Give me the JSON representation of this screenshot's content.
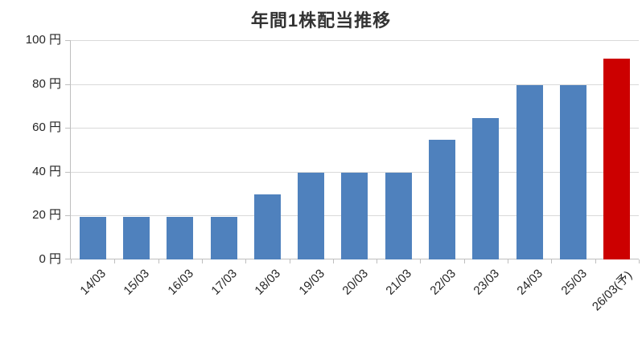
{
  "title": "年間1株配当推移",
  "chart_data": {
    "type": "bar",
    "title": "年間1株配当推移",
    "xlabel": "",
    "ylabel": "",
    "unit": "円",
    "categories": [
      "14/03",
      "15/03",
      "16/03",
      "17/03",
      "18/03",
      "19/03",
      "20/03",
      "21/03",
      "22/03",
      "23/03",
      "24/03",
      "25/03",
      "26/03(予)"
    ],
    "values": [
      19.5,
      19.5,
      19.5,
      19.5,
      29.5,
      39.5,
      39.5,
      39.5,
      54.5,
      64.5,
      79.5,
      79.5,
      91.5
    ],
    "bar_types": [
      "actual",
      "actual",
      "actual",
      "actual",
      "actual",
      "actual",
      "actual",
      "actual",
      "actual",
      "actual",
      "actual",
      "actual",
      "forecast"
    ],
    "colors": {
      "actual": "#4f81bd",
      "forecast": "#cc0000"
    },
    "ylim": [
      0,
      100
    ],
    "ytick_step": 20,
    "ytick_labels": [
      "0 円",
      "20 円",
      "40 円",
      "60 円",
      "80 円",
      "100 円"
    ],
    "grid": "horizontal",
    "legend": "none",
    "notes": "last bar is forecast (予) shown in red; x labels rotated 45 degrees"
  }
}
